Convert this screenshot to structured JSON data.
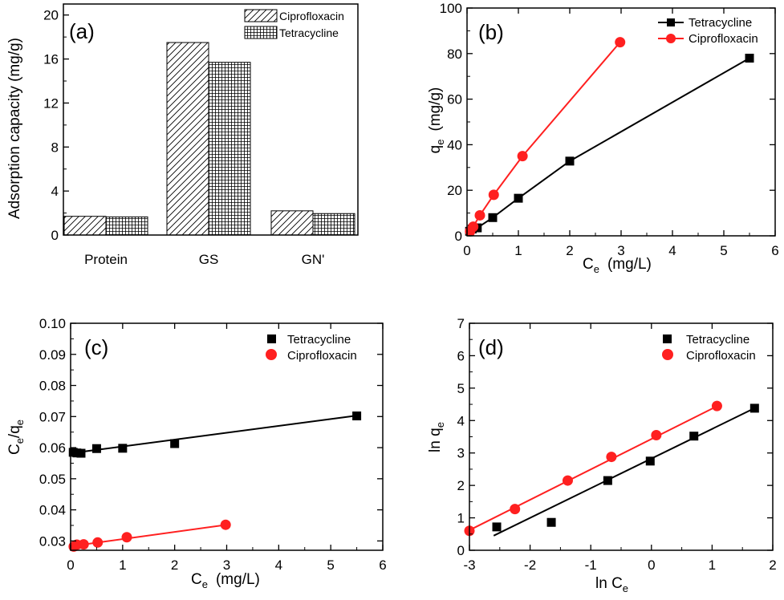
{
  "chart_data": [
    {
      "panel_label": "(a)",
      "type": "bar",
      "categories": [
        "Protein",
        "GS",
        "GN'"
      ],
      "series": [
        {
          "name": "Ciprofloxacin",
          "values": [
            1.7,
            17.5,
            2.2
          ],
          "pattern": "diagonal-hatch"
        },
        {
          "name": "Tetracycline",
          "values": [
            1.65,
            15.7,
            1.95
          ],
          "pattern": "crosshatch"
        }
      ],
      "ylabel": "Adsorption capacity  (mg/g)",
      "ylim": [
        0,
        21
      ],
      "yticks": [
        0,
        4,
        8,
        12,
        16,
        20
      ],
      "legend": "top-right"
    },
    {
      "panel_label": "(b)",
      "type": "line",
      "series": [
        {
          "name": "Tetracycline",
          "color": "#000000",
          "marker": "square",
          "x": [
            0.05,
            0.1,
            0.2,
            0.5,
            1.0,
            2.0,
            5.5
          ],
          "y": [
            2.0,
            3.0,
            3.5,
            8.0,
            16.5,
            32.8,
            78.0
          ]
        },
        {
          "name": "Ciprofloxacin",
          "color": "#ff2020",
          "marker": "circle",
          "x": [
            0.06,
            0.12,
            0.25,
            0.52,
            1.08,
            2.98
          ],
          "y": [
            2.0,
            4.0,
            9.0,
            18.0,
            35.0,
            85.0
          ]
        }
      ],
      "xlabel": "C",
      "xlabel_sub": "e",
      "xlabel_unit": "(mg/L)",
      "ylabel": "q",
      "ylabel_sub": "e",
      "ylabel_unit": "(mg/g)",
      "xlim": [
        0,
        6
      ],
      "ylim": [
        0,
        100
      ],
      "xticks": [
        0,
        1,
        2,
        3,
        4,
        5,
        6
      ],
      "yticks": [
        0,
        20,
        40,
        60,
        80,
        100
      ],
      "legend": "top-right"
    },
    {
      "panel_label": "(c)",
      "type": "scatter",
      "series": [
        {
          "name": "Tetracycline",
          "color": "#000000",
          "marker": "square",
          "x": [
            0.05,
            0.12,
            0.2,
            0.5,
            1.0,
            2.0,
            5.5
          ],
          "y": [
            0.0585,
            0.0583,
            0.0582,
            0.0597,
            0.0598,
            0.0613,
            0.0702
          ],
          "fit": [
            [
              0.05,
              0.0583
            ],
            [
              5.5,
              0.0703
            ]
          ]
        },
        {
          "name": "Ciprofloxacin",
          "color": "#ff2020",
          "marker": "circle",
          "x": [
            0.06,
            0.12,
            0.25,
            0.52,
            1.08,
            2.98
          ],
          "y": [
            0.0282,
            0.0288,
            0.0289,
            0.0295,
            0.0312,
            0.0352
          ],
          "fit": [
            [
              0.0,
              0.0283
            ],
            [
              3.0,
              0.0352
            ]
          ]
        }
      ],
      "xlabel": "C",
      "xlabel_sub": "e",
      "xlabel_unit": "(mg/L)",
      "ylabel": "C",
      "ylabel_sub": "e",
      "ylabel_mid": "/q",
      "ylabel_sub2": "e",
      "xlim": [
        0,
        6
      ],
      "ylim": [
        0.027,
        0.1
      ],
      "xticks": [
        0,
        1,
        2,
        3,
        4,
        5,
        6
      ],
      "yticks": [
        "0.03",
        "0.04",
        "0.05",
        "0.06",
        "0.07",
        "0.08",
        "0.09",
        "0.10"
      ],
      "legend": "top-right"
    },
    {
      "panel_label": "(d)",
      "type": "scatter",
      "series": [
        {
          "name": "Tetracycline",
          "color": "#000000",
          "marker": "square",
          "x": [
            -2.55,
            -1.65,
            -0.72,
            -0.02,
            0.7,
            1.7
          ],
          "y": [
            0.72,
            0.86,
            2.15,
            2.75,
            3.52,
            4.38
          ],
          "fit": [
            [
              -2.6,
              0.45
            ],
            [
              1.72,
              4.4
            ]
          ]
        },
        {
          "name": "Ciprofloxacin",
          "color": "#ff2020",
          "marker": "circle",
          "x": [
            -3.0,
            -2.25,
            -1.38,
            -0.66,
            0.08,
            1.08
          ],
          "y": [
            0.6,
            1.27,
            2.15,
            2.88,
            3.55,
            4.45
          ],
          "fit": [
            [
              -3.0,
              0.62
            ],
            [
              1.1,
              4.46
            ]
          ]
        }
      ],
      "xlabel": "ln C",
      "xlabel_sub": "e",
      "ylabel": "ln q",
      "ylabel_sub": "e",
      "xlim": [
        -3,
        2
      ],
      "ylim": [
        0,
        7
      ],
      "xticks": [
        -3,
        -2,
        -1,
        0,
        1,
        2
      ],
      "yticks": [
        0,
        1,
        2,
        3,
        4,
        5,
        6,
        7
      ],
      "legend": "top-right"
    }
  ]
}
